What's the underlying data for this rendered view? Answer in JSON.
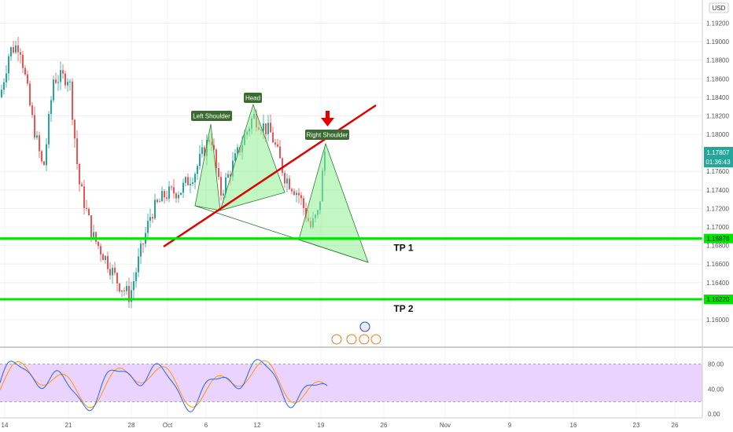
{
  "chart_data": {
    "type": "candlestick",
    "currency": "USD",
    "price_axis": {
      "range": [
        1.1572,
        1.1945
      ],
      "ticks": [
        "1.19200",
        "1.19000",
        "1.18800",
        "1.18600",
        "1.18400",
        "1.18200",
        "1.18000",
        "1.17600",
        "1.17400",
        "1.17200",
        "1.17000",
        "1.16800",
        "1.16600",
        "1.16400",
        "1.16000"
      ]
    },
    "time_axis": {
      "ticks": [
        "14",
        "21",
        "28",
        "Oct",
        "6",
        "12",
        "19",
        "26",
        "Nov",
        "9",
        "16",
        "23",
        "26"
      ]
    },
    "current_price": {
      "value": "1.17807",
      "countdown": "01:36:43"
    },
    "levels": [
      {
        "name": "TP 1",
        "price_label": "1.16876",
        "value": 1.16876
      },
      {
        "name": "TP 2",
        "price_label": "1.16220",
        "value": 1.1622
      }
    ],
    "annotations": [
      "Left Shoulder",
      "Head",
      "Right Shoulder"
    ],
    "oscillator": {
      "range": [
        -6,
        106
      ],
      "ticks": [
        "80.00",
        "40.00",
        "0.00"
      ],
      "bands": [
        20,
        80
      ]
    },
    "colors": {
      "up": "#26a69a",
      "down": "#ef5350",
      "level": "#00e600",
      "neckline": "#e00000",
      "pattern_fill": "#90ee90",
      "label_bg": "#3a6b2f",
      "oscillator_band": "#e6ccff",
      "k_line": "#2962ff",
      "d_line": "#ff9800"
    }
  }
}
